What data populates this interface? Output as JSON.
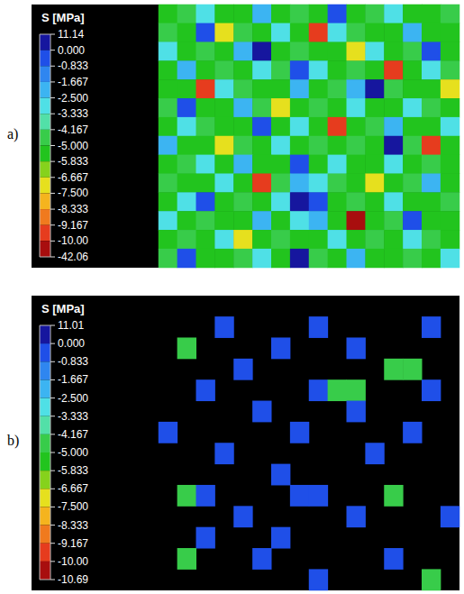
{
  "chart_data": [
    {
      "type": "heatmap",
      "title": "a)",
      "colorbar": {
        "title": "S [MPa]",
        "range": [
          -42.06,
          11.14
        ],
        "ticks": [
          11.14,
          {
            "value": 0,
            "label": "0.000"
          },
          -0.833,
          -1.667,
          {
            "value": -2.5,
            "label": "-2.500"
          },
          -3.333,
          -4.167,
          {
            "value": -5,
            "label": "-5.000"
          },
          -5.833,
          -6.667,
          {
            "value": -7.5,
            "label": "-7.500"
          },
          -8.333,
          -9.167,
          {
            "value": -10,
            "label": "-10.00"
          },
          -42.06
        ]
      },
      "colors": [
        "#16169e",
        "#1f4fe8",
        "#2f86f0",
        "#3cb4f2",
        "#4fe0e6",
        "#52e0a8",
        "#38cc4a",
        "#22c41e",
        "#86d21c",
        "#e6e01e",
        "#f5b41e",
        "#f07a1e",
        "#e63c1e",
        "#a80e0e"
      ],
      "cells": [
        [
          -5.4,
          -4.6,
          -2.9,
          -5.4,
          -5.4,
          -2.0,
          -5.4,
          -4.6,
          -5.4,
          -0.4,
          -5.4,
          -4.6,
          -2.9,
          -5.4,
          -5.4,
          -4.6
        ],
        [
          -4.6,
          -5.4,
          -0.4,
          -7.0,
          -4.6,
          -5.4,
          -2.9,
          -5.4,
          -9.6,
          -2.9,
          -4.6,
          -5.4,
          -5.4,
          -2.0,
          -5.4,
          -5.4
        ],
        [
          -2.9,
          -5.4,
          -4.6,
          -5.4,
          -2.0,
          2.0,
          -5.4,
          -4.6,
          -5.4,
          -5.4,
          -7.0,
          -2.9,
          -5.4,
          -4.6,
          -0.4,
          -5.4
        ],
        [
          -5.4,
          -2.0,
          -5.4,
          -4.6,
          -5.4,
          -2.9,
          -4.6,
          -0.4,
          -2.9,
          -5.4,
          -4.6,
          -5.4,
          -9.6,
          -5.4,
          -2.9,
          -4.6
        ],
        [
          -5.4,
          -5.4,
          -9.6,
          -2.9,
          -4.6,
          -5.4,
          -5.4,
          -2.0,
          -5.4,
          -4.6,
          -2.0,
          2.0,
          -4.6,
          -5.4,
          -5.4,
          -7.0
        ],
        [
          -4.6,
          -0.4,
          -5.4,
          -5.4,
          -2.0,
          -4.6,
          -7.0,
          -5.4,
          -4.6,
          -5.4,
          -2.9,
          -5.4,
          -5.4,
          -2.9,
          -4.6,
          -5.4
        ],
        [
          -5.4,
          -2.9,
          -4.6,
          -5.4,
          -5.4,
          -0.4,
          -5.4,
          -2.9,
          -5.4,
          -9.6,
          -5.4,
          -4.6,
          -2.0,
          -5.4,
          -5.4,
          -2.9
        ],
        [
          -2.0,
          -5.4,
          -5.4,
          -7.0,
          -4.6,
          -5.4,
          -2.9,
          -5.4,
          -4.6,
          -5.4,
          -4.6,
          -5.4,
          2.0,
          -4.6,
          -9.6,
          -5.4
        ],
        [
          -5.4,
          -4.6,
          -2.9,
          -5.4,
          -2.0,
          -5.4,
          -5.4,
          -0.4,
          -5.4,
          -2.9,
          -5.4,
          -5.4,
          -2.9,
          -5.4,
          -4.6,
          -5.4
        ],
        [
          -4.6,
          -5.4,
          -5.4,
          -2.9,
          -5.4,
          -9.6,
          -4.6,
          -2.0,
          -2.9,
          -4.6,
          -5.4,
          -7.0,
          -5.4,
          -4.6,
          -2.0,
          -5.4
        ],
        [
          -5.4,
          -2.9,
          -0.4,
          -5.4,
          -4.6,
          -5.4,
          -2.9,
          2.0,
          -0.4,
          -5.4,
          -4.6,
          -5.4,
          -2.9,
          -5.4,
          -5.4,
          -4.6
        ],
        [
          -2.9,
          -5.4,
          -4.6,
          -5.4,
          -5.4,
          -2.0,
          -5.4,
          -2.9,
          -2.0,
          -5.4,
          -15,
          -5.4,
          -4.6,
          -0.4,
          -5.4,
          -5.4
        ],
        [
          -5.4,
          -4.6,
          -5.4,
          -2.9,
          -7.0,
          -5.4,
          -4.6,
          -5.4,
          -5.4,
          -2.9,
          -5.4,
          -4.6,
          -5.4,
          -2.9,
          -4.6,
          -5.4
        ],
        [
          -4.6,
          -0.4,
          -5.4,
          -5.4,
          -4.6,
          -2.9,
          -5.4,
          2.0,
          -4.6,
          -5.4,
          -2.0,
          -5.4,
          -5.4,
          -4.6,
          -5.4,
          -2.9
        ]
      ]
    },
    {
      "type": "heatmap",
      "title": "b)",
      "colorbar": {
        "title": "S [MPa]",
        "range": [
          -10.69,
          11.01
        ],
        "ticks": [
          11.01,
          {
            "value": 0,
            "label": "0.000"
          },
          -0.833,
          -1.667,
          {
            "value": -2.5,
            "label": "-2.500"
          },
          -3.333,
          -4.167,
          {
            "value": -5,
            "label": "-5.000"
          },
          -5.833,
          -6.667,
          {
            "value": -7.5,
            "label": "-7.500"
          },
          -8.333,
          -9.167,
          {
            "value": -10,
            "label": "-10.00"
          },
          -10.69
        ]
      },
      "colors": [
        "#16169e",
        "#1f4fe8",
        "#2f86f0",
        "#3cb4f2",
        "#4fe0e6",
        "#52e0a8",
        "#38cc4a",
        "#22c41e",
        "#86d21c",
        "#e6e01e",
        "#f5b41e",
        "#f07a1e",
        "#e63c1e",
        "#a80e0e"
      ],
      "cells": [
        [
          null,
          null,
          null,
          null,
          null,
          null,
          null,
          null,
          null,
          null,
          null,
          null,
          null,
          null,
          null,
          null
        ],
        [
          null,
          null,
          null,
          -0.4,
          null,
          null,
          null,
          null,
          -0.4,
          null,
          null,
          null,
          null,
          null,
          -0.4,
          null
        ],
        [
          null,
          -4.6,
          null,
          null,
          null,
          null,
          -0.4,
          null,
          null,
          null,
          -0.4,
          null,
          null,
          null,
          null,
          null
        ],
        [
          null,
          null,
          null,
          null,
          -0.4,
          null,
          null,
          null,
          null,
          null,
          null,
          null,
          -4.6,
          -4.6,
          null,
          null
        ],
        [
          null,
          null,
          -0.4,
          null,
          null,
          null,
          null,
          null,
          -0.4,
          -4.6,
          -4.6,
          null,
          null,
          null,
          -0.4,
          null
        ],
        [
          null,
          null,
          null,
          null,
          null,
          -0.4,
          null,
          null,
          null,
          null,
          -0.4,
          null,
          null,
          null,
          null,
          null
        ],
        [
          -0.4,
          null,
          null,
          null,
          null,
          null,
          null,
          -0.4,
          null,
          null,
          null,
          null,
          null,
          -0.4,
          null,
          null
        ],
        [
          null,
          null,
          null,
          -0.4,
          null,
          null,
          null,
          null,
          null,
          null,
          null,
          -0.4,
          null,
          null,
          null,
          null
        ],
        [
          null,
          null,
          null,
          null,
          null,
          null,
          -0.4,
          null,
          null,
          null,
          null,
          null,
          null,
          null,
          null,
          null
        ],
        [
          null,
          -4.6,
          -0.4,
          null,
          null,
          null,
          null,
          -0.4,
          -0.4,
          null,
          null,
          null,
          -4.6,
          null,
          null,
          null
        ],
        [
          null,
          null,
          null,
          null,
          -0.4,
          null,
          null,
          null,
          null,
          null,
          -0.4,
          null,
          null,
          null,
          null,
          -0.4
        ],
        [
          null,
          null,
          -0.4,
          null,
          null,
          null,
          -0.4,
          null,
          null,
          null,
          null,
          null,
          null,
          null,
          null,
          null
        ],
        [
          null,
          -4.6,
          null,
          null,
          null,
          -0.4,
          null,
          null,
          null,
          null,
          null,
          null,
          -0.4,
          null,
          null,
          null
        ],
        [
          null,
          null,
          null,
          null,
          null,
          null,
          null,
          null,
          -0.4,
          null,
          null,
          null,
          null,
          null,
          -4.6,
          null
        ]
      ]
    }
  ]
}
